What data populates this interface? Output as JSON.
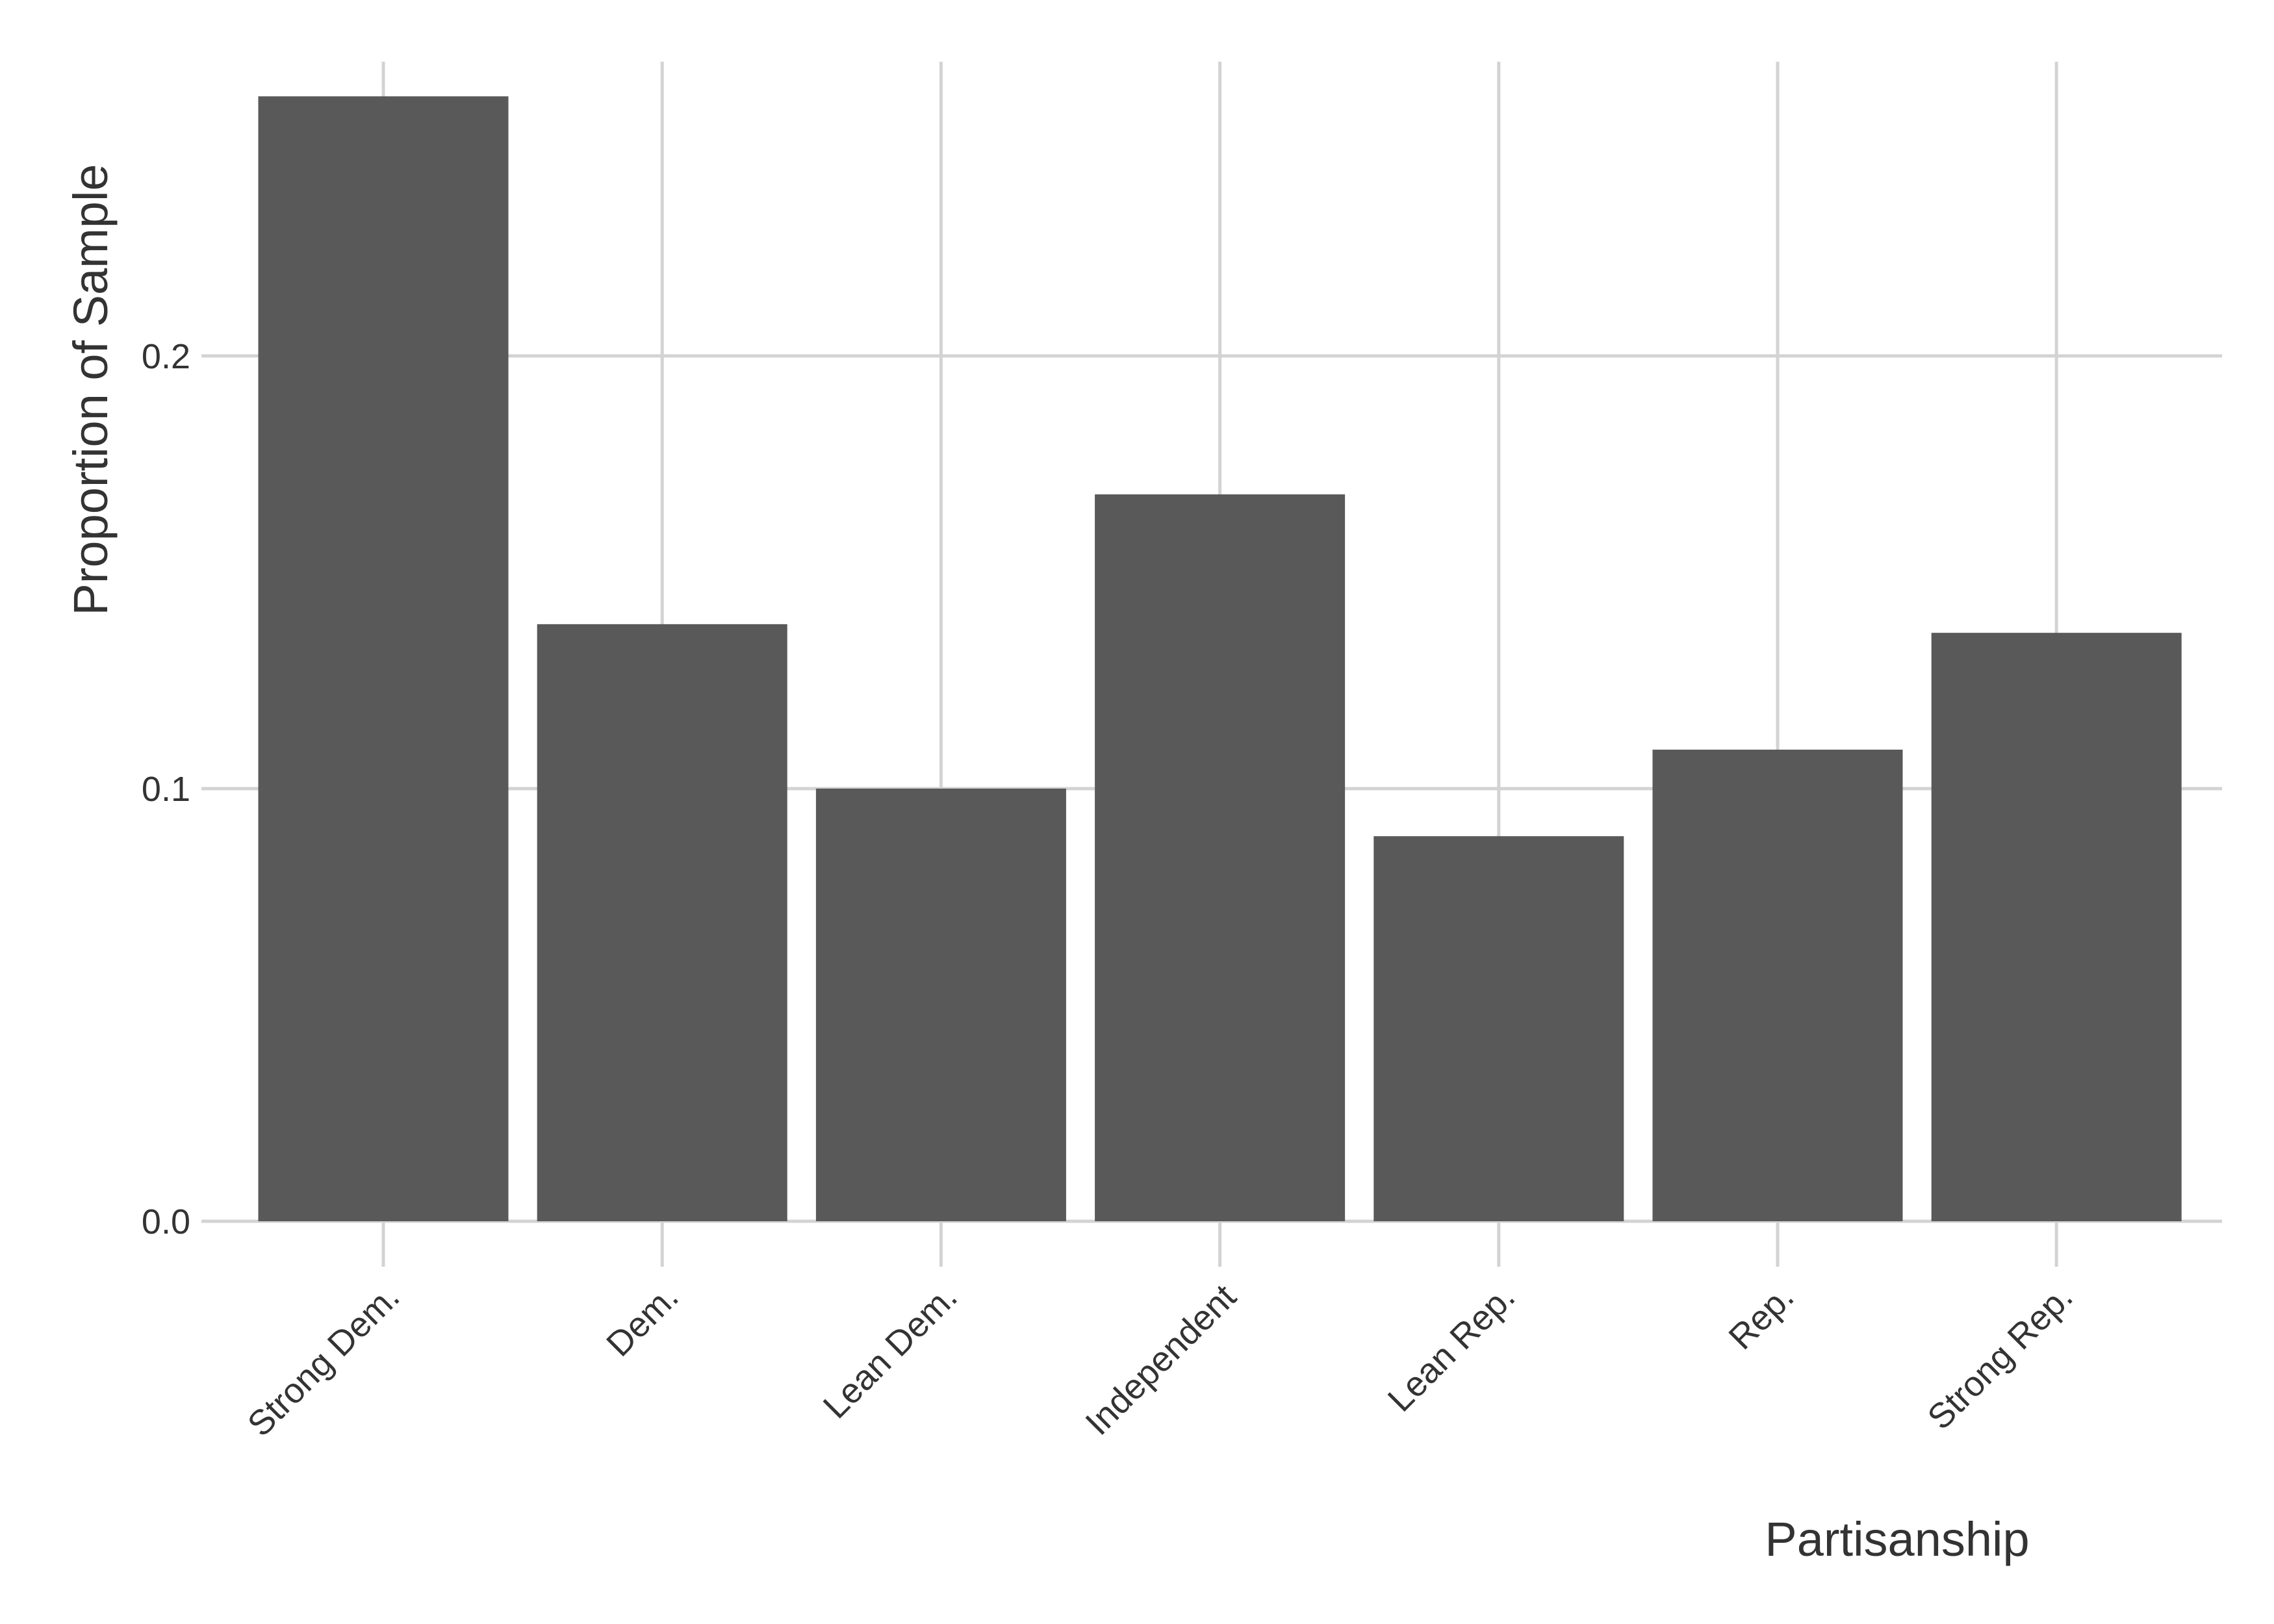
{
  "chart_data": {
    "type": "bar",
    "title": "",
    "xlabel": "Partisanship",
    "ylabel": "Proportion of Sample",
    "categories": [
      "Strong Dem.",
      "Dem.",
      "Lean Dem.",
      "Independent",
      "Lean Rep.",
      "Rep.",
      "Strong Rep."
    ],
    "values": [
      0.26,
      0.138,
      0.1,
      0.168,
      0.089,
      0.109,
      0.136
    ],
    "ylim": [
      0,
      0.268
    ],
    "yticks": [
      0.0,
      0.1,
      0.2
    ],
    "ytick_labels": [
      "0.0",
      "0.1",
      "0.2"
    ],
    "grid": true,
    "legend": "none",
    "bar_color": "#595959",
    "grid_color": "#d3d3d3",
    "text_color": "#333333"
  }
}
